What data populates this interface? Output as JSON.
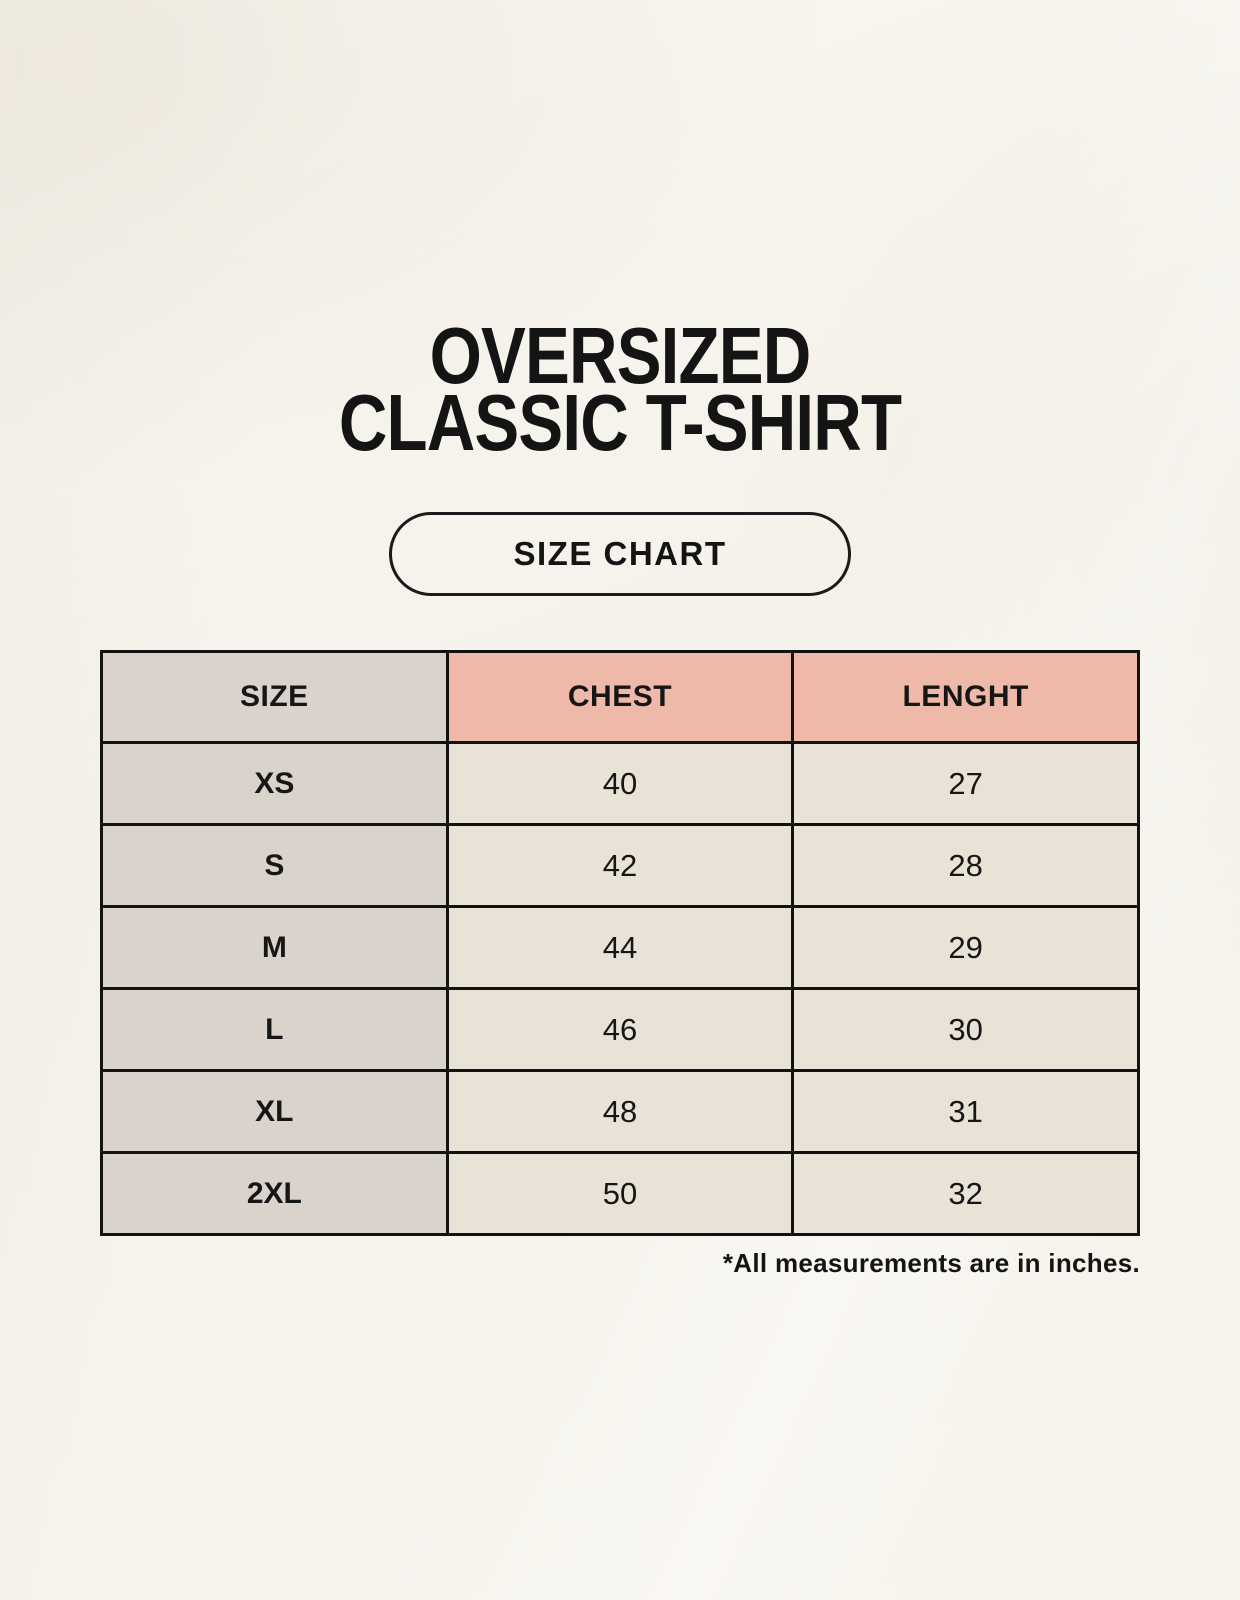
{
  "header": {
    "title_line1": "OVERSIZED",
    "title_line2": "CLASSIC T-SHIRT",
    "badge_label": "SIZE CHART"
  },
  "footnote": {
    "text": "*All measurements are in inches."
  },
  "colors": {
    "page_background": "#f6f3ec",
    "size_column_bg": "#d9d3cc",
    "header_accent_bg": "#efb9a9",
    "data_cell_bg": "#e9e2d6",
    "border": "#121212",
    "text": "#161616"
  },
  "chart_data": {
    "type": "table",
    "title": "OVERSIZED CLASSIC T-SHIRT",
    "subtitle": "SIZE CHART",
    "columns": [
      "SIZE",
      "CHEST",
      "LENGHT"
    ],
    "rows": [
      [
        "XS",
        40,
        27
      ],
      [
        "S",
        42,
        28
      ],
      [
        "M",
        44,
        29
      ],
      [
        "L",
        46,
        30
      ],
      [
        "XL",
        48,
        31
      ],
      [
        "2XL",
        50,
        32
      ]
    ],
    "note": "*All measurements are in inches.",
    "units": "inches"
  }
}
